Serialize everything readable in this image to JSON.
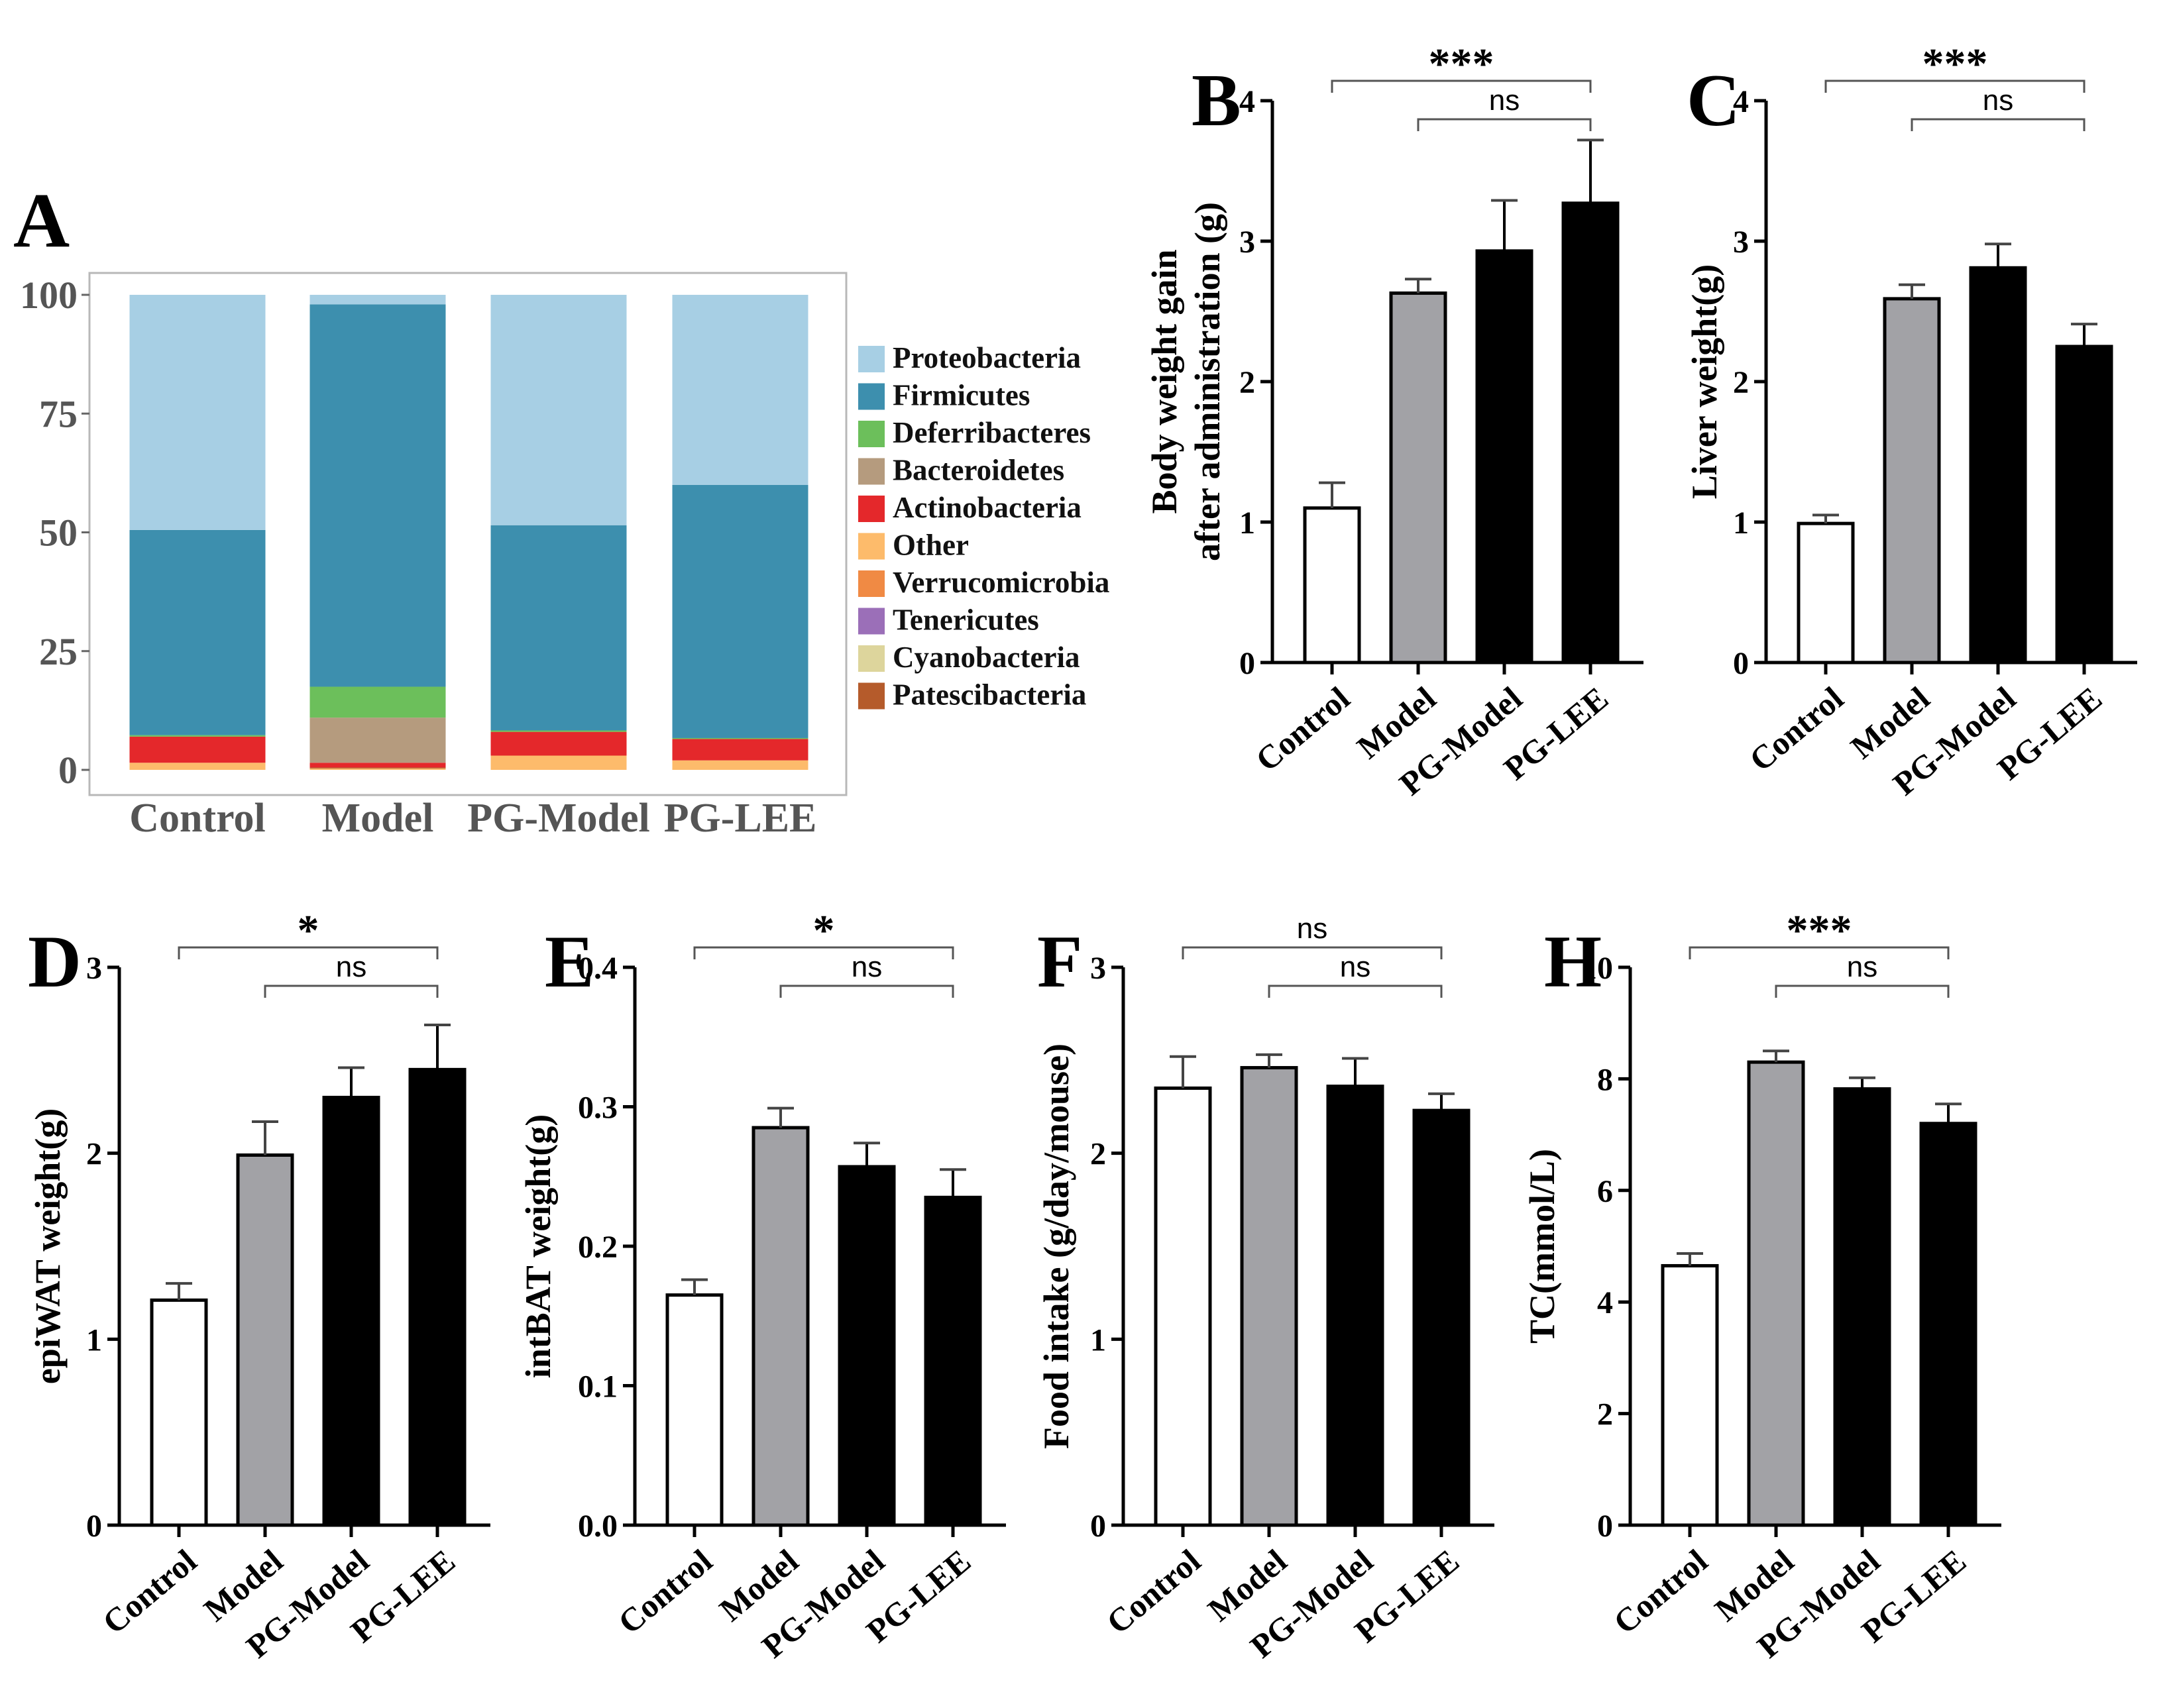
{
  "chart_data": [
    {
      "panel": "A",
      "type": "bar",
      "stacked": true,
      "categories": [
        "Control",
        "Model",
        "PG-Model",
        "PG-LEE"
      ],
      "yticks": [
        "0",
        "25",
        "50",
        "75",
        "100"
      ],
      "ylim": [
        0,
        100
      ],
      "series": [
        {
          "name": "Other",
          "color": "#FDBB6B",
          "values": [
            1.5,
            0.3,
            3.0,
            2.0
          ]
        },
        {
          "name": "Patescibacteria",
          "color": "#B55B2B",
          "values": [
            0,
            0.2,
            0,
            0
          ]
        },
        {
          "name": "Cyanobacteria",
          "color": "#DDD59C",
          "values": [
            0,
            0,
            0,
            0
          ]
        },
        {
          "name": "Tenericutes",
          "color": "#9B6FB8",
          "values": [
            0,
            0,
            0,
            0
          ]
        },
        {
          "name": "Verrucomicrobia",
          "color": "#F08A44",
          "values": [
            0,
            0,
            0,
            0
          ]
        },
        {
          "name": "Actinobacteria",
          "color": "#E4282B",
          "values": [
            5.5,
            1.0,
            5.0,
            4.5
          ]
        },
        {
          "name": "Bacteroidetes",
          "color": "#B59B7E",
          "values": [
            0,
            9.5,
            0,
            0
          ]
        },
        {
          "name": "Deferribacteres",
          "color": "#6CBF5B",
          "values": [
            0.3,
            6.5,
            0.3,
            0.2
          ]
        },
        {
          "name": "Firmicutes",
          "color": "#3D8FAE",
          "values": [
            43.2,
            80.5,
            43.2,
            53.3
          ]
        },
        {
          "name": "Proteobacteria",
          "color": "#A7CFE4",
          "values": [
            49.5,
            2.0,
            48.5,
            40.0
          ]
        }
      ],
      "legend": [
        "Proteobacteria",
        "Firmicutes",
        "Deferribacteres",
        "Bacteroidetes",
        "Actinobacteria",
        "Other",
        "Verrucomicrobia",
        "Tenericutes",
        "Cyanobacteria",
        "Patescibacteria"
      ],
      "legend_colors": [
        "#A7CFE4",
        "#3D8FAE",
        "#6CBF5B",
        "#B59B7E",
        "#E4282B",
        "#FDBB6B",
        "#F08A44",
        "#9B6FB8",
        "#DDD59C",
        "#B55B2B"
      ]
    },
    {
      "panel": "B",
      "type": "bar",
      "ylabel": [
        "Body weight gain",
        "after administration (g)"
      ],
      "categories": [
        "Control",
        "Model",
        "PG-Model",
        "PG-LEE"
      ],
      "values": [
        1.1,
        2.63,
        2.93,
        3.27
      ],
      "errors": [
        0.18,
        0.1,
        0.36,
        0.45
      ],
      "colors": [
        "#FFFFFF",
        "#A2A2A6",
        "#000000",
        "#000000"
      ],
      "yticks": [
        "0",
        "1",
        "2",
        "3",
        "4"
      ],
      "ylim": [
        0,
        4
      ],
      "sig_top": "***",
      "sig_bottom": "ns"
    },
    {
      "panel": "C",
      "type": "bar",
      "ylabel": [
        "Liver weight(g)"
      ],
      "categories": [
        "Control",
        "Model",
        "PG-Model",
        "PG-LEE"
      ],
      "values": [
        0.99,
        2.59,
        2.81,
        2.25
      ],
      "errors": [
        0.06,
        0.1,
        0.17,
        0.16
      ],
      "colors": [
        "#FFFFFF",
        "#A2A2A6",
        "#000000",
        "#000000"
      ],
      "yticks": [
        "0",
        "1",
        "2",
        "3",
        "4"
      ],
      "ylim": [
        0,
        4
      ],
      "sig_top": "***",
      "sig_bottom": "ns"
    },
    {
      "panel": "D",
      "type": "bar",
      "ylabel": [
        "epiWAT weight(g)"
      ],
      "categories": [
        "Control",
        "Model",
        "PG-Model",
        "PG-LEE"
      ],
      "values": [
        1.21,
        1.99,
        2.3,
        2.45
      ],
      "errors": [
        0.09,
        0.18,
        0.16,
        0.24
      ],
      "colors": [
        "#FFFFFF",
        "#A2A2A6",
        "#000000",
        "#000000"
      ],
      "yticks": [
        "0",
        "1",
        "2",
        "3"
      ],
      "ylim": [
        0,
        3
      ],
      "sig_top": "*",
      "sig_bottom": "ns"
    },
    {
      "panel": "E",
      "type": "bar",
      "ylabel": [
        "intBAT weight(g)"
      ],
      "categories": [
        "Control",
        "Model",
        "PG-Model",
        "PG-LEE"
      ],
      "values": [
        0.165,
        0.285,
        0.257,
        0.235
      ],
      "errors": [
        0.011,
        0.014,
        0.017,
        0.02
      ],
      "colors": [
        "#FFFFFF",
        "#A2A2A6",
        "#000000",
        "#000000"
      ],
      "yticks": [
        "0.0",
        "0.1",
        "0.2",
        "0.3",
        "0.4"
      ],
      "ylim": [
        0,
        0.4
      ],
      "sig_top": "*",
      "sig_bottom": "ns"
    },
    {
      "panel": "F",
      "type": "bar",
      "ylabel": [
        "Food intake (g/day/mouse)"
      ],
      "categories": [
        "Control",
        "Model",
        "PG-Model",
        "PG-LEE"
      ],
      "values": [
        2.35,
        2.46,
        2.36,
        2.23
      ],
      "errors": [
        0.17,
        0.07,
        0.15,
        0.09
      ],
      "colors": [
        "#FFFFFF",
        "#A2A2A6",
        "#000000",
        "#000000"
      ],
      "yticks": [
        "0",
        "1",
        "2",
        "3"
      ],
      "ylim": [
        0,
        3
      ],
      "sig_top": "ns",
      "sig_bottom": "ns"
    },
    {
      "panel": "H",
      "type": "bar",
      "ylabel": [
        "TC(mmol/L)"
      ],
      "categories": [
        "Control",
        "Model",
        "PG-Model",
        "PG-LEE"
      ],
      "values": [
        4.65,
        8.3,
        7.82,
        7.2
      ],
      "errors": [
        0.22,
        0.2,
        0.2,
        0.35
      ],
      "colors": [
        "#FFFFFF",
        "#A2A2A6",
        "#000000",
        "#000000"
      ],
      "yticks": [
        "0",
        "2",
        "4",
        "6",
        "8",
        "10"
      ],
      "ylim": [
        0,
        10
      ],
      "sig_top": "***",
      "sig_bottom": "ns"
    }
  ]
}
